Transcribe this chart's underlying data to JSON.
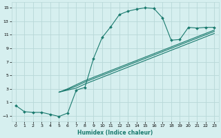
{
  "xlabel": "Humidex (Indice chaleur)",
  "ylabel": "",
  "bg_color": "#d6efef",
  "grid_color": "#b8d8d8",
  "line_color": "#1a7a6e",
  "xlim": [
    -0.5,
    23.5
  ],
  "ylim": [
    -1.8,
    15.8
  ],
  "xticks": [
    0,
    1,
    2,
    3,
    4,
    5,
    6,
    7,
    8,
    9,
    10,
    11,
    12,
    13,
    14,
    15,
    16,
    17,
    18,
    19,
    20,
    21,
    22,
    23
  ],
  "yticks": [
    -1,
    1,
    3,
    5,
    7,
    9,
    11,
    13,
    15
  ],
  "curve1_x": [
    0,
    1,
    2,
    3,
    4,
    5,
    6,
    7,
    8,
    9,
    10,
    11,
    12,
    13,
    14,
    15,
    16,
    17,
    18,
    19,
    20,
    21,
    22,
    23
  ],
  "curve1_y": [
    0.5,
    -0.4,
    -0.5,
    -0.5,
    -0.8,
    -1.1,
    -0.6,
    2.8,
    3.2,
    7.5,
    10.6,
    12.2,
    14.0,
    14.5,
    14.8,
    15.0,
    14.9,
    13.5,
    10.2,
    10.3,
    12.1,
    12.0,
    12.1,
    12.1
  ],
  "diag1_x": [
    5,
    6,
    7,
    8,
    9,
    10,
    11,
    12,
    13,
    14,
    15,
    16,
    17,
    18,
    19,
    20,
    21,
    22,
    23
  ],
  "diag1_y": [
    2.5,
    2.8,
    3.1,
    3.7,
    4.2,
    4.7,
    5.2,
    5.7,
    6.2,
    6.7,
    7.2,
    7.7,
    8.2,
    8.7,
    9.2,
    9.7,
    10.2,
    10.7,
    11.2
  ],
  "diag2_x": [
    5,
    6,
    7,
    8,
    9,
    10,
    11,
    12,
    13,
    14,
    15,
    16,
    17,
    18,
    19,
    20,
    21,
    22,
    23
  ],
  "diag2_y": [
    2.5,
    2.9,
    3.4,
    4.0,
    4.5,
    5.0,
    5.5,
    6.0,
    6.5,
    7.0,
    7.5,
    8.0,
    8.5,
    9.0,
    9.5,
    10.0,
    10.5,
    11.0,
    11.5
  ],
  "diag3_x": [
    5,
    6,
    7,
    8,
    9,
    10,
    11,
    12,
    13,
    14,
    15,
    16,
    17,
    18,
    19,
    20,
    21,
    22,
    23
  ],
  "diag3_y": [
    2.5,
    3.0,
    3.6,
    4.2,
    4.7,
    5.2,
    5.7,
    6.2,
    6.7,
    7.2,
    7.7,
    8.2,
    8.7,
    9.2,
    9.7,
    10.2,
    10.7,
    11.2,
    11.7
  ]
}
